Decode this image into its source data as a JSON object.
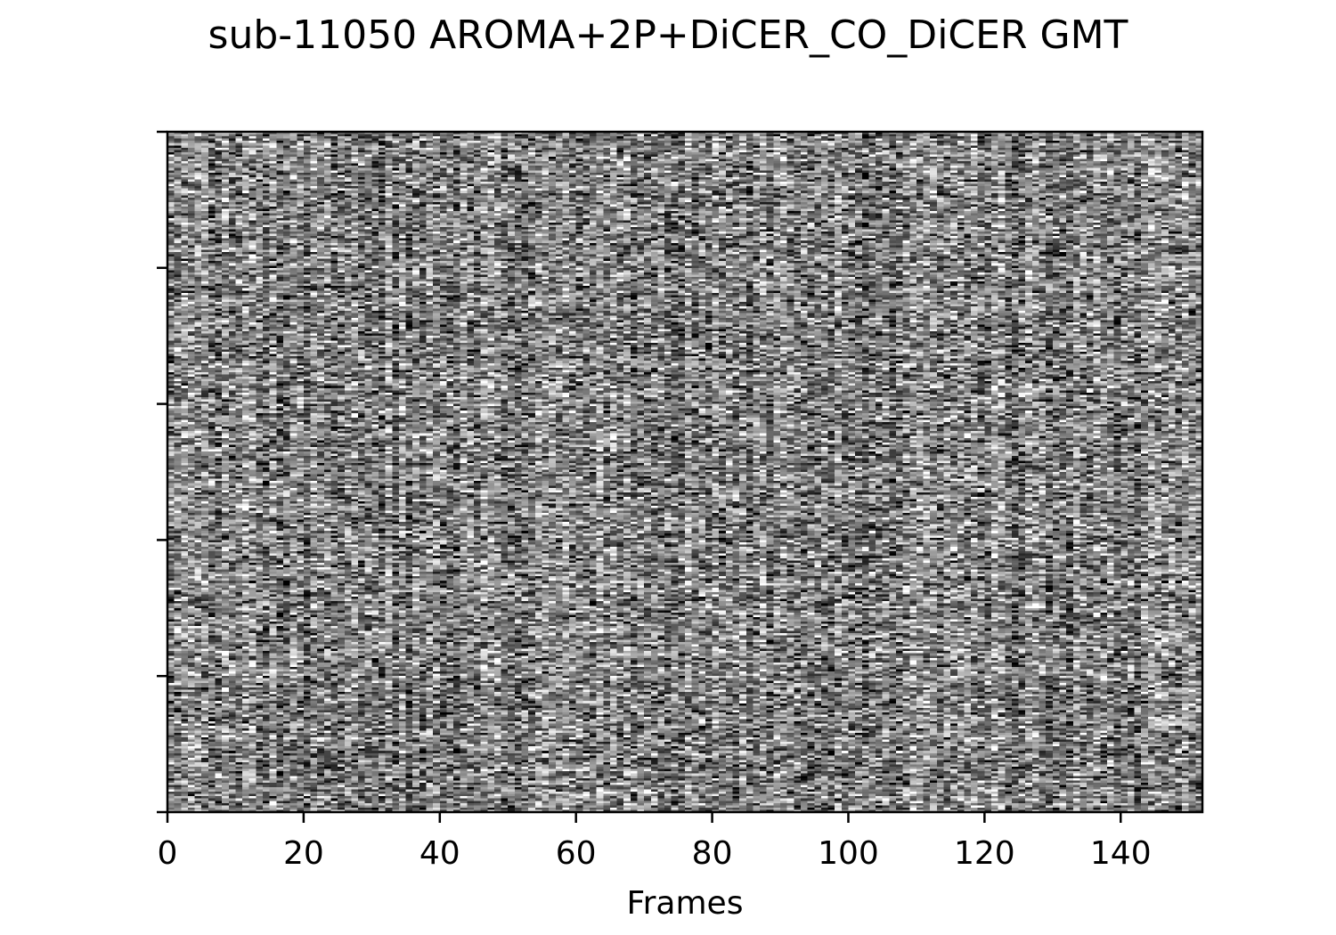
{
  "chart_data": {
    "type": "heatmap",
    "title": "sub-11050 AROMA+2P+DiCER_CO_DiCER GMT",
    "xlabel": "Frames",
    "ylabel": "",
    "xlim": [
      0,
      152
    ],
    "x_ticks": [
      0,
      20,
      40,
      60,
      80,
      100,
      120,
      140
    ],
    "x_tick_labels": [
      "0",
      "20",
      "40",
      "60",
      "80",
      "100",
      "120",
      "140"
    ],
    "y_ticks_count": 6,
    "y_tick_labels": [],
    "n_frames": 152,
    "colormap": "gray",
    "value_range": [
      -1,
      1
    ],
    "grid": false,
    "description_of_values": "grayscale carpet plot of voxel time series; individual cell values not legible"
  }
}
